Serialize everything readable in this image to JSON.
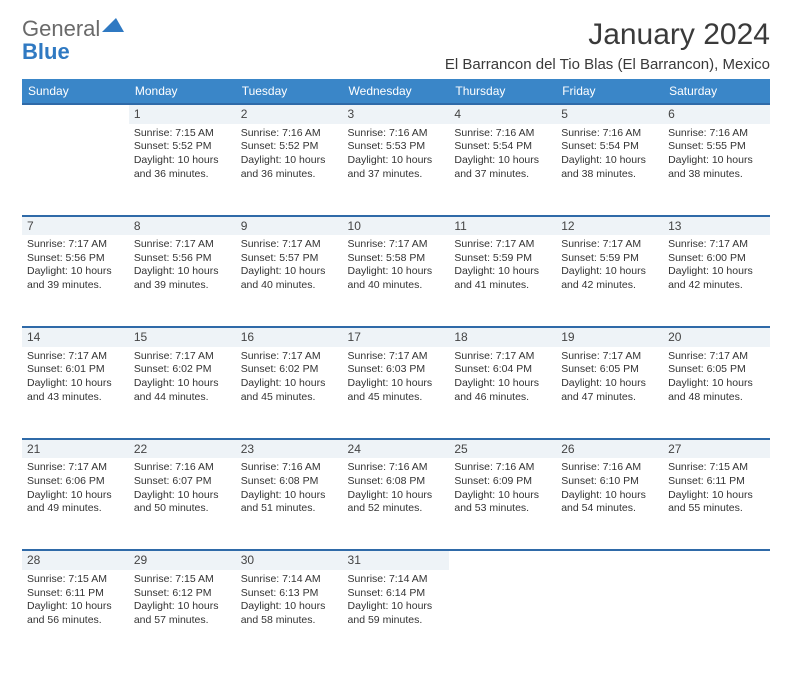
{
  "logo": {
    "general": "General",
    "blue": "Blue"
  },
  "title": "January 2024",
  "location": "El Barrancon del Tio Blas (El Barrancon), Mexico",
  "colors": {
    "header_bg": "#3a86c8",
    "header_text": "#ffffff",
    "daynum_bg": "#eef3f7",
    "daynum_border": "#2f6aa8",
    "logo_gray": "#6a6a6a",
    "logo_blue": "#2f79c2"
  },
  "weekdays": [
    "Sunday",
    "Monday",
    "Tuesday",
    "Wednesday",
    "Thursday",
    "Friday",
    "Saturday"
  ],
  "weeks": [
    {
      "nums": [
        "",
        "1",
        "2",
        "3",
        "4",
        "5",
        "6"
      ],
      "cells": [
        {
          "lines": []
        },
        {
          "lines": [
            "Sunrise: 7:15 AM",
            "Sunset: 5:52 PM",
            "Daylight: 10 hours",
            "and 36 minutes."
          ]
        },
        {
          "lines": [
            "Sunrise: 7:16 AM",
            "Sunset: 5:52 PM",
            "Daylight: 10 hours",
            "and 36 minutes."
          ]
        },
        {
          "lines": [
            "Sunrise: 7:16 AM",
            "Sunset: 5:53 PM",
            "Daylight: 10 hours",
            "and 37 minutes."
          ]
        },
        {
          "lines": [
            "Sunrise: 7:16 AM",
            "Sunset: 5:54 PM",
            "Daylight: 10 hours",
            "and 37 minutes."
          ]
        },
        {
          "lines": [
            "Sunrise: 7:16 AM",
            "Sunset: 5:54 PM",
            "Daylight: 10 hours",
            "and 38 minutes."
          ]
        },
        {
          "lines": [
            "Sunrise: 7:16 AM",
            "Sunset: 5:55 PM",
            "Daylight: 10 hours",
            "and 38 minutes."
          ]
        }
      ]
    },
    {
      "nums": [
        "7",
        "8",
        "9",
        "10",
        "11",
        "12",
        "13"
      ],
      "cells": [
        {
          "lines": [
            "Sunrise: 7:17 AM",
            "Sunset: 5:56 PM",
            "Daylight: 10 hours",
            "and 39 minutes."
          ]
        },
        {
          "lines": [
            "Sunrise: 7:17 AM",
            "Sunset: 5:56 PM",
            "Daylight: 10 hours",
            "and 39 minutes."
          ]
        },
        {
          "lines": [
            "Sunrise: 7:17 AM",
            "Sunset: 5:57 PM",
            "Daylight: 10 hours",
            "and 40 minutes."
          ]
        },
        {
          "lines": [
            "Sunrise: 7:17 AM",
            "Sunset: 5:58 PM",
            "Daylight: 10 hours",
            "and 40 minutes."
          ]
        },
        {
          "lines": [
            "Sunrise: 7:17 AM",
            "Sunset: 5:59 PM",
            "Daylight: 10 hours",
            "and 41 minutes."
          ]
        },
        {
          "lines": [
            "Sunrise: 7:17 AM",
            "Sunset: 5:59 PM",
            "Daylight: 10 hours",
            "and 42 minutes."
          ]
        },
        {
          "lines": [
            "Sunrise: 7:17 AM",
            "Sunset: 6:00 PM",
            "Daylight: 10 hours",
            "and 42 minutes."
          ]
        }
      ]
    },
    {
      "nums": [
        "14",
        "15",
        "16",
        "17",
        "18",
        "19",
        "20"
      ],
      "cells": [
        {
          "lines": [
            "Sunrise: 7:17 AM",
            "Sunset: 6:01 PM",
            "Daylight: 10 hours",
            "and 43 minutes."
          ]
        },
        {
          "lines": [
            "Sunrise: 7:17 AM",
            "Sunset: 6:02 PM",
            "Daylight: 10 hours",
            "and 44 minutes."
          ]
        },
        {
          "lines": [
            "Sunrise: 7:17 AM",
            "Sunset: 6:02 PM",
            "Daylight: 10 hours",
            "and 45 minutes."
          ]
        },
        {
          "lines": [
            "Sunrise: 7:17 AM",
            "Sunset: 6:03 PM",
            "Daylight: 10 hours",
            "and 45 minutes."
          ]
        },
        {
          "lines": [
            "Sunrise: 7:17 AM",
            "Sunset: 6:04 PM",
            "Daylight: 10 hours",
            "and 46 minutes."
          ]
        },
        {
          "lines": [
            "Sunrise: 7:17 AM",
            "Sunset: 6:05 PM",
            "Daylight: 10 hours",
            "and 47 minutes."
          ]
        },
        {
          "lines": [
            "Sunrise: 7:17 AM",
            "Sunset: 6:05 PM",
            "Daylight: 10 hours",
            "and 48 minutes."
          ]
        }
      ]
    },
    {
      "nums": [
        "21",
        "22",
        "23",
        "24",
        "25",
        "26",
        "27"
      ],
      "cells": [
        {
          "lines": [
            "Sunrise: 7:17 AM",
            "Sunset: 6:06 PM",
            "Daylight: 10 hours",
            "and 49 minutes."
          ]
        },
        {
          "lines": [
            "Sunrise: 7:16 AM",
            "Sunset: 6:07 PM",
            "Daylight: 10 hours",
            "and 50 minutes."
          ]
        },
        {
          "lines": [
            "Sunrise: 7:16 AM",
            "Sunset: 6:08 PM",
            "Daylight: 10 hours",
            "and 51 minutes."
          ]
        },
        {
          "lines": [
            "Sunrise: 7:16 AM",
            "Sunset: 6:08 PM",
            "Daylight: 10 hours",
            "and 52 minutes."
          ]
        },
        {
          "lines": [
            "Sunrise: 7:16 AM",
            "Sunset: 6:09 PM",
            "Daylight: 10 hours",
            "and 53 minutes."
          ]
        },
        {
          "lines": [
            "Sunrise: 7:16 AM",
            "Sunset: 6:10 PM",
            "Daylight: 10 hours",
            "and 54 minutes."
          ]
        },
        {
          "lines": [
            "Sunrise: 7:15 AM",
            "Sunset: 6:11 PM",
            "Daylight: 10 hours",
            "and 55 minutes."
          ]
        }
      ]
    },
    {
      "nums": [
        "28",
        "29",
        "30",
        "31",
        "",
        "",
        ""
      ],
      "cells": [
        {
          "lines": [
            "Sunrise: 7:15 AM",
            "Sunset: 6:11 PM",
            "Daylight: 10 hours",
            "and 56 minutes."
          ]
        },
        {
          "lines": [
            "Sunrise: 7:15 AM",
            "Sunset: 6:12 PM",
            "Daylight: 10 hours",
            "and 57 minutes."
          ]
        },
        {
          "lines": [
            "Sunrise: 7:14 AM",
            "Sunset: 6:13 PM",
            "Daylight: 10 hours",
            "and 58 minutes."
          ]
        },
        {
          "lines": [
            "Sunrise: 7:14 AM",
            "Sunset: 6:14 PM",
            "Daylight: 10 hours",
            "and 59 minutes."
          ]
        },
        {
          "lines": []
        },
        {
          "lines": []
        },
        {
          "lines": []
        }
      ]
    }
  ]
}
